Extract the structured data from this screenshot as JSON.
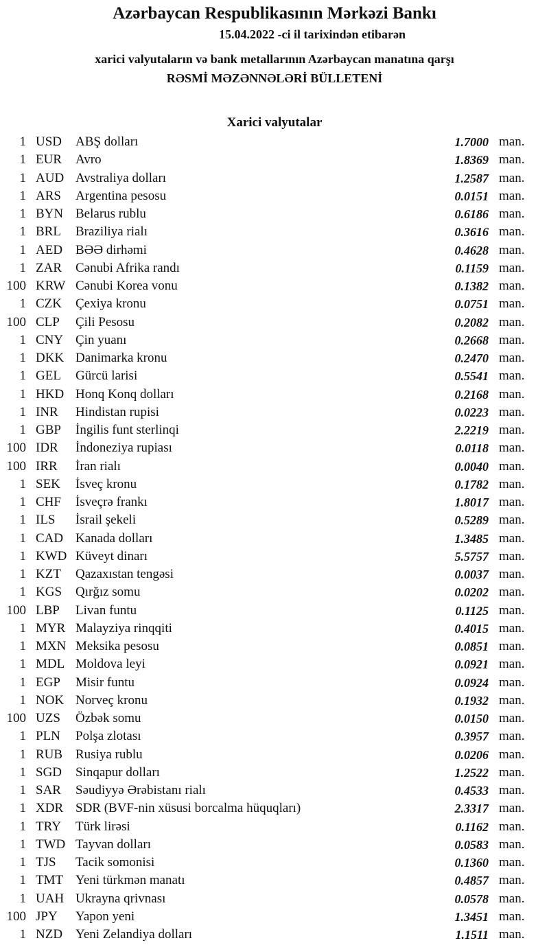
{
  "header": {
    "title": "Azərbaycan Respublikasının Mərkəzi Bankı",
    "date_line": "15.04.2022 -ci il tarixindən etibarən",
    "subtitle": "xarici valyutaların və bank metallarının Azərbaycan manatına qarşı",
    "bulletin": "RƏSMİ MƏZƏNNƏLƏRİ BÜLLETENİ"
  },
  "section": {
    "title": "Xarici valyutalar",
    "unit": "man.",
    "rows": [
      {
        "qty": "1",
        "code": "USD",
        "name": "ABŞ dolları",
        "rate": "1.7000"
      },
      {
        "qty": "1",
        "code": "EUR",
        "name": "Avro",
        "rate": "1.8369"
      },
      {
        "qty": "1",
        "code": "AUD",
        "name": "Avstraliya dolları",
        "rate": "1.2587"
      },
      {
        "qty": "1",
        "code": "ARS",
        "name": "Argentina pesosu",
        "rate": "0.0151"
      },
      {
        "qty": "1",
        "code": "BYN",
        "name": "Belarus rublu",
        "rate": "0.6186"
      },
      {
        "qty": "1",
        "code": "BRL",
        "name": "Braziliya rialı",
        "rate": "0.3616"
      },
      {
        "qty": "1",
        "code": "AED",
        "name": "BƏƏ dirhəmi",
        "rate": "0.4628"
      },
      {
        "qty": "1",
        "code": "ZAR",
        "name": "Cənubi Afrika randı",
        "rate": "0.1159"
      },
      {
        "qty": "100",
        "code": "KRW",
        "name": "Cənubi Korea vonu",
        "rate": "0.1382"
      },
      {
        "qty": "1",
        "code": "CZK",
        "name": "Çexiya kronu",
        "rate": "0.0751"
      },
      {
        "qty": "100",
        "code": "CLP",
        "name": "Çili Pesosu",
        "rate": "0.2082"
      },
      {
        "qty": "1",
        "code": "CNY",
        "name": "Çin yuanı",
        "rate": "0.2668"
      },
      {
        "qty": "1",
        "code": "DKK",
        "name": "Danimarka kronu",
        "rate": "0.2470"
      },
      {
        "qty": "1",
        "code": "GEL",
        "name": "Gürcü larisi",
        "rate": "0.5541"
      },
      {
        "qty": "1",
        "code": "HKD",
        "name": "Honq Konq dolları",
        "rate": "0.2168"
      },
      {
        "qty": "1",
        "code": "INR",
        "name": "Hindistan rupisi",
        "rate": "0.0223"
      },
      {
        "qty": "1",
        "code": "GBP",
        "name": "İngilis funt sterlinqi",
        "rate": "2.2219"
      },
      {
        "qty": "100",
        "code": "IDR",
        "name": "İndoneziya rupiası",
        "rate": "0.0118"
      },
      {
        "qty": "100",
        "code": "IRR",
        "name": "İran rialı",
        "rate": "0.0040"
      },
      {
        "qty": "1",
        "code": "SEK",
        "name": "İsveç kronu",
        "rate": "0.1782"
      },
      {
        "qty": "1",
        "code": "CHF",
        "name": "İsveçrə frankı",
        "rate": "1.8017"
      },
      {
        "qty": "1",
        "code": "ILS",
        "name": "İsrail şekeli",
        "rate": "0.5289"
      },
      {
        "qty": "1",
        "code": "CAD",
        "name": "Kanada dolları",
        "rate": "1.3485"
      },
      {
        "qty": "1",
        "code": "KWD",
        "name": "Küveyt dinarı",
        "rate": "5.5757"
      },
      {
        "qty": "1",
        "code": "KZT",
        "name": "Qazaxıstan tengəsi",
        "rate": "0.0037"
      },
      {
        "qty": "1",
        "code": "KGS",
        "name": "Qırğız somu",
        "rate": "0.0202"
      },
      {
        "qty": "100",
        "code": "LBP",
        "name": "Livan funtu",
        "rate": "0.1125"
      },
      {
        "qty": "1",
        "code": "MYR",
        "name": "Malayziya rinqqiti",
        "rate": "0.4015"
      },
      {
        "qty": "1",
        "code": "MXN",
        "name": "Meksika pesosu",
        "rate": "0.0851"
      },
      {
        "qty": "1",
        "code": "MDL",
        "name": "Moldova leyi",
        "rate": "0.0921"
      },
      {
        "qty": "1",
        "code": "EGP",
        "name": "Misir funtu",
        "rate": "0.0924"
      },
      {
        "qty": "1",
        "code": "NOK",
        "name": "Norveç kronu",
        "rate": "0.1932"
      },
      {
        "qty": "100",
        "code": "UZS",
        "name": "Özbək somu",
        "rate": "0.0150"
      },
      {
        "qty": "1",
        "code": "PLN",
        "name": "Polşa zlotası",
        "rate": "0.3957"
      },
      {
        "qty": "1",
        "code": "RUB",
        "name": "Rusiya rublu",
        "rate": "0.0206"
      },
      {
        "qty": "1",
        "code": "SGD",
        "name": "Sinqapur dolları",
        "rate": "1.2522"
      },
      {
        "qty": "1",
        "code": "SAR",
        "name": "Səudiyyə Ərəbistanı rialı",
        "rate": "0.4533"
      },
      {
        "qty": "1",
        "code": "XDR",
        "name": "SDR (BVF-nin xüsusi borcalma hüquqları)",
        "rate": "2.3317"
      },
      {
        "qty": "1",
        "code": "TRY",
        "name": "Türk lirəsi",
        "rate": "0.1162"
      },
      {
        "qty": "1",
        "code": "TWD",
        "name": "Tayvan dolları",
        "rate": "0.0583"
      },
      {
        "qty": "1",
        "code": "TJS",
        "name": "Tacik somonisi",
        "rate": "0.1360"
      },
      {
        "qty": "1",
        "code": "TMT",
        "name": "Yeni türkmən manatı",
        "rate": "0.4857"
      },
      {
        "qty": "1",
        "code": "UAH",
        "name": "Ukrayna qrivnası",
        "rate": "0.0578"
      },
      {
        "qty": "100",
        "code": "JPY",
        "name": "Yapon yeni",
        "rate": "1.3451"
      },
      {
        "qty": "1",
        "code": "NZD",
        "name": "Yeni Zelandiya dolları",
        "rate": "1.1511"
      }
    ]
  }
}
